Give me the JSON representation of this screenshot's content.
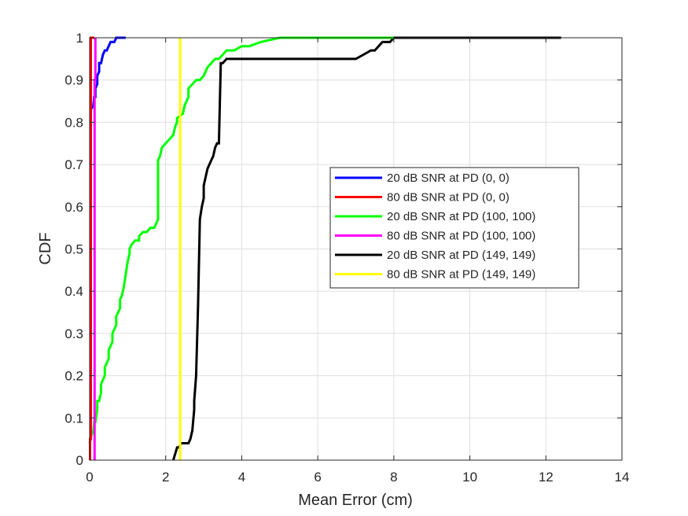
{
  "chart_data": {
    "type": "line",
    "title": "",
    "xlabel": "Mean Error (cm)",
    "ylabel": "CDF",
    "xlim": [
      0,
      14
    ],
    "ylim": [
      0,
      1
    ],
    "xticks": [
      0,
      2,
      4,
      6,
      8,
      10,
      12,
      14
    ],
    "yticks": [
      0,
      0.1,
      0.2,
      0.3,
      0.4,
      0.5,
      0.6,
      0.7,
      0.8,
      0.9,
      1
    ],
    "grid": true,
    "legend_position": "center-right",
    "series": [
      {
        "name": "20 dB SNR at PD (0, 0)",
        "color": "#0000ff",
        "x": [
          0.03,
          0.03,
          0.1,
          0.12,
          0.15,
          0.15,
          0.2,
          0.2,
          0.25,
          0.25,
          0.3,
          0.35,
          0.4,
          0.45,
          0.5,
          0.55,
          0.6,
          0.65,
          0.7,
          0.75,
          0.8,
          0.85,
          0.95
        ],
        "y": [
          0.82,
          0.83,
          0.84,
          0.86,
          0.86,
          0.88,
          0.89,
          0.91,
          0.92,
          0.94,
          0.94,
          0.96,
          0.97,
          0.97,
          0.98,
          0.99,
          0.99,
          0.99,
          1.0,
          1.0,
          1.0,
          1.0,
          1.0
        ]
      },
      {
        "name": "80 dB SNR at PD (0, 0)",
        "color": "#ff0000",
        "x": [
          0.01,
          0.01,
          0.03,
          0.03,
          0.05,
          0.08,
          0.1,
          0.12
        ],
        "y": [
          0.0,
          0.05,
          0.05,
          1.0,
          1.0,
          1.0,
          1.0,
          1.0
        ]
      },
      {
        "name": "20 dB SNR at PD (100, 100)",
        "color": "#00ff00",
        "x": [
          0.0,
          0.05,
          0.1,
          0.12,
          0.15,
          0.2,
          0.2,
          0.25,
          0.3,
          0.3,
          0.35,
          0.4,
          0.4,
          0.45,
          0.5,
          0.5,
          0.55,
          0.6,
          0.6,
          0.7,
          0.7,
          0.8,
          0.8,
          0.85,
          0.9,
          0.95,
          1.0,
          1.05,
          1.05,
          1.1,
          1.2,
          1.3,
          1.3,
          1.4,
          1.5,
          1.6,
          1.7,
          1.8,
          1.8,
          1.85,
          1.9,
          2.0,
          2.1,
          2.2,
          2.25,
          2.3,
          2.3,
          2.45,
          2.5,
          2.6,
          2.6,
          2.7,
          2.8,
          2.9,
          3.0,
          3.1,
          3.2,
          3.3,
          3.4,
          3.5,
          3.6,
          3.7,
          3.8,
          4.0,
          4.2,
          4.5,
          5.0,
          5.5,
          6.0,
          7.0,
          8.0
        ],
        "y": [
          0.04,
          0.06,
          0.07,
          0.09,
          0.09,
          0.12,
          0.14,
          0.14,
          0.16,
          0.18,
          0.19,
          0.2,
          0.22,
          0.23,
          0.24,
          0.26,
          0.27,
          0.28,
          0.3,
          0.32,
          0.34,
          0.36,
          0.38,
          0.39,
          0.41,
          0.44,
          0.47,
          0.49,
          0.5,
          0.51,
          0.52,
          0.52,
          0.53,
          0.54,
          0.54,
          0.55,
          0.55,
          0.57,
          0.71,
          0.72,
          0.74,
          0.75,
          0.76,
          0.77,
          0.79,
          0.8,
          0.81,
          0.82,
          0.84,
          0.86,
          0.88,
          0.89,
          0.9,
          0.9,
          0.91,
          0.93,
          0.94,
          0.95,
          0.95,
          0.96,
          0.97,
          0.97,
          0.97,
          0.98,
          0.98,
          0.99,
          1.0,
          1.0,
          1.0,
          1.0,
          1.0
        ]
      },
      {
        "name": "80 dB SNR at PD (100, 100)",
        "color": "#ff00ff",
        "x": [
          0.13,
          0.13,
          0.15,
          0.15
        ],
        "y": [
          0.0,
          0.9,
          0.9,
          1.0
        ]
      },
      {
        "name": "20 dB SNR at PD (149, 149)",
        "color": "#000000",
        "x": [
          2.2,
          2.3,
          2.35,
          2.4,
          2.5,
          2.6,
          2.65,
          2.7,
          2.75,
          2.75,
          2.8,
          2.85,
          2.85,
          2.9,
          2.95,
          3.0,
          3.0,
          3.05,
          3.1,
          3.15,
          3.2,
          3.25,
          3.3,
          3.35,
          3.4,
          3.45,
          3.5,
          3.6,
          4.0,
          5.0,
          6.0,
          7.0,
          7.2,
          7.4,
          7.5,
          7.6,
          7.7,
          7.8,
          7.9,
          8.0,
          8.5,
          9.0,
          10.0,
          11.0,
          12.0,
          12.4
        ],
        "y": [
          0.0,
          0.03,
          0.03,
          0.04,
          0.04,
          0.04,
          0.05,
          0.07,
          0.12,
          0.14,
          0.2,
          0.36,
          0.36,
          0.57,
          0.6,
          0.62,
          0.65,
          0.67,
          0.69,
          0.7,
          0.71,
          0.72,
          0.74,
          0.75,
          0.75,
          0.94,
          0.94,
          0.95,
          0.95,
          0.95,
          0.95,
          0.95,
          0.96,
          0.97,
          0.97,
          0.98,
          0.99,
          0.99,
          0.99,
          1.0,
          1.0,
          1.0,
          1.0,
          1.0,
          1.0,
          1.0
        ]
      },
      {
        "name": "80 dB SNR at PD (149, 149)",
        "color": "#ffff00",
        "x": [
          2.38,
          2.38
        ],
        "y": [
          0.0,
          1.0
        ]
      }
    ]
  }
}
